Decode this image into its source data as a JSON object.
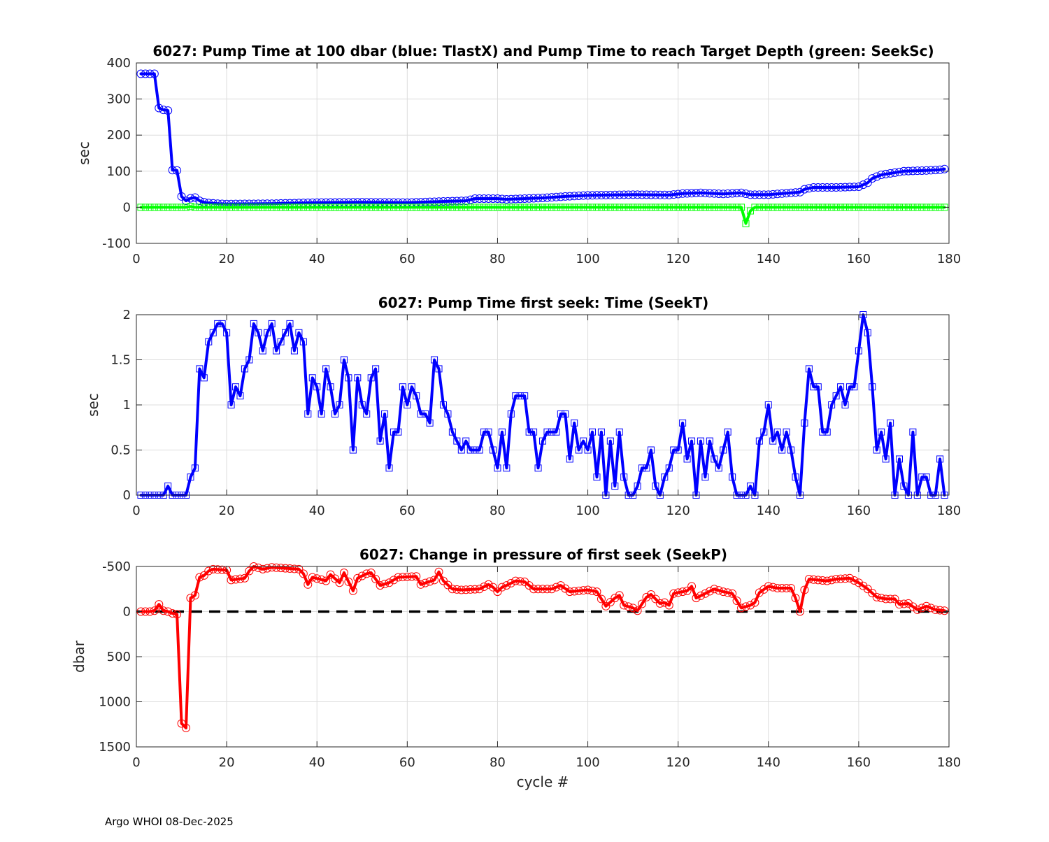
{
  "footer": "Argo WHOI 08-Dec-2025",
  "chart_data": [
    {
      "type": "line",
      "title": "6027:  Pump Time at 100 dbar (blue: TlastX) and Pump Time to reach Target Depth (green: SeekSc)",
      "xlabel": "",
      "ylabel": "sec",
      "xlim": [
        0,
        180
      ],
      "ylim": [
        -100,
        400
      ],
      "xticks": [
        0,
        20,
        40,
        60,
        80,
        100,
        120,
        140,
        160,
        180
      ],
      "yticks": [
        -100,
        0,
        100,
        200,
        300,
        400
      ],
      "ytick_labels": [
        "-100",
        "0",
        "100",
        "200",
        "300",
        "400"
      ],
      "grid": true,
      "series": [
        {
          "label": "TlastX",
          "color": "#0000ff",
          "marker": "circle",
          "points": [
            [
              1,
              370
            ],
            [
              2,
              370
            ],
            [
              3,
              370
            ],
            [
              4,
              370
            ],
            [
              5,
              275
            ],
            [
              6,
              270
            ],
            [
              7,
              268
            ],
            [
              8,
              103
            ],
            [
              9,
              102
            ],
            [
              10,
              30
            ],
            [
              11,
              18
            ],
            [
              12,
              25
            ],
            [
              13,
              27
            ],
            [
              14,
              18
            ],
            [
              15,
              14
            ],
            [
              16,
              12
            ],
            [
              18,
              10
            ],
            [
              20,
              9
            ],
            [
              30,
              10
            ],
            [
              40,
              13
            ],
            [
              50,
              14
            ],
            [
              60,
              13
            ],
            [
              70,
              17
            ],
            [
              73,
              18
            ],
            [
              75,
              24
            ],
            [
              80,
              24
            ],
            [
              82,
              22
            ],
            [
              90,
              26
            ],
            [
              95,
              30
            ],
            [
              100,
              33
            ],
            [
              110,
              35
            ],
            [
              118,
              34
            ],
            [
              121,
              38
            ],
            [
              125,
              40
            ],
            [
              130,
              37
            ],
            [
              134,
              40
            ],
            [
              136,
              35
            ],
            [
              140,
              35
            ],
            [
              145,
              40
            ],
            [
              147,
              42
            ],
            [
              148,
              50
            ],
            [
              150,
              55
            ],
            [
              155,
              55
            ],
            [
              160,
              57
            ],
            [
              162,
              68
            ],
            [
              163,
              80
            ],
            [
              165,
              90
            ],
            [
              170,
              100
            ],
            [
              175,
              102
            ],
            [
              178,
              104
            ],
            [
              179,
              106
            ]
          ]
        },
        {
          "label": "SeekSc",
          "color": "#00ff00",
          "marker": "square",
          "points": [
            [
              1,
              0
            ],
            [
              11,
              0
            ],
            [
              12,
              2
            ],
            [
              13,
              0
            ],
            [
              134,
              0
            ],
            [
              135,
              -45
            ],
            [
              136,
              -10
            ],
            [
              137,
              0
            ],
            [
              179,
              0
            ]
          ]
        }
      ]
    },
    {
      "type": "line",
      "title": "6027: Pump Time first seek: Time (SeekT)",
      "xlabel": "",
      "ylabel": "sec",
      "xlim": [
        0,
        180
      ],
      "ylim": [
        0,
        2
      ],
      "xticks": [
        0,
        20,
        40,
        60,
        80,
        100,
        120,
        140,
        160,
        180
      ],
      "yticks": [
        0,
        0.5,
        1,
        1.5,
        2
      ],
      "ytick_labels": [
        "0",
        "0.5",
        "1",
        "1.5",
        "2"
      ],
      "grid": true,
      "series": [
        {
          "label": "SeekT",
          "color": "#0000ff",
          "marker": "square",
          "values": [
            0,
            0,
            0,
            0,
            0,
            0,
            0.1,
            0,
            0,
            0,
            0,
            0.2,
            0.3,
            1.4,
            1.3,
            1.7,
            1.8,
            1.9,
            1.9,
            1.8,
            1.0,
            1.2,
            1.1,
            1.4,
            1.5,
            1.9,
            1.8,
            1.6,
            1.8,
            1.9,
            1.6,
            1.7,
            1.8,
            1.9,
            1.6,
            1.8,
            1.7,
            0.9,
            1.3,
            1.2,
            0.9,
            1.4,
            1.2,
            0.9,
            1.0,
            1.5,
            1.3,
            0.5,
            1.3,
            1.0,
            0.9,
            1.3,
            1.4,
            0.6,
            0.9,
            0.3,
            0.7,
            0.7,
            1.2,
            1.0,
            1.2,
            1.1,
            0.9,
            0.9,
            0.8,
            1.5,
            1.4,
            1.0,
            0.9,
            0.7,
            0.6,
            0.5,
            0.6,
            0.5,
            0.5,
            0.5,
            0.7,
            0.7,
            0.5,
            0.3,
            0.7,
            0.3,
            0.9,
            1.1,
            1.1,
            1.1,
            0.7,
            0.7,
            0.3,
            0.6,
            0.7,
            0.7,
            0.7,
            0.9,
            0.9,
            0.4,
            0.8,
            0.5,
            0.6,
            0.5,
            0.7,
            0.2,
            0.7,
            0,
            0.6,
            0.1,
            0.7,
            0.2,
            0,
            0,
            0.1,
            0.3,
            0.3,
            0.5,
            0.1,
            0,
            0.2,
            0.3,
            0.5,
            0.5,
            0.8,
            0.4,
            0.6,
            0,
            0.6,
            0.2,
            0.6,
            0.4,
            0.3,
            0.5,
            0.7,
            0.2,
            0,
            0,
            0,
            0.1,
            0,
            0.6,
            0.7,
            1.0,
            0.6,
            0.7,
            0.5,
            0.7,
            0.5,
            0.2,
            0,
            0.8,
            1.4,
            1.2,
            1.2,
            0.7,
            0.7,
            1.0,
            1.1,
            1.2,
            1.0,
            1.2,
            1.2,
            1.6,
            2.0,
            1.8,
            1.2,
            0.5,
            0.7,
            0.4,
            0.8,
            0,
            0.4,
            0.1,
            0,
            0.7,
            0,
            0.2,
            0.2,
            0,
            0,
            0.4,
            0
          ]
        }
      ]
    },
    {
      "type": "line",
      "title": "6027: Change in pressure of first seek (SeekP)",
      "xlabel": "cycle #",
      "ylabel": "dbar",
      "xlim": [
        0,
        180
      ],
      "ylim": [
        1500,
        -500
      ],
      "y_reversed": true,
      "xticks": [
        0,
        20,
        40,
        60,
        80,
        100,
        120,
        140,
        160,
        180
      ],
      "yticks": [
        -500,
        0,
        500,
        1000,
        1500
      ],
      "ytick_labels": [
        "-500",
        "0",
        "500",
        "1000",
        "1500"
      ],
      "grid": true,
      "reference_line": {
        "y": 0,
        "style": "dashed",
        "color": "#000000"
      },
      "series": [
        {
          "label": "SeekP",
          "color": "#ff0000",
          "marker": "circle",
          "points": [
            [
              1,
              0
            ],
            [
              3,
              0
            ],
            [
              4,
              -10
            ],
            [
              5,
              -80
            ],
            [
              6,
              -10
            ],
            [
              7,
              0
            ],
            [
              8,
              20
            ],
            [
              9,
              30
            ],
            [
              10,
              1240
            ],
            [
              11,
              1290
            ],
            [
              12,
              -150
            ],
            [
              13,
              -180
            ],
            [
              14,
              -380
            ],
            [
              15,
              -400
            ],
            [
              16,
              -450
            ],
            [
              17,
              -470
            ],
            [
              20,
              -460
            ],
            [
              21,
              -350
            ],
            [
              24,
              -370
            ],
            [
              25,
              -450
            ],
            [
              26,
              -500
            ],
            [
              28,
              -470
            ],
            [
              30,
              -490
            ],
            [
              36,
              -470
            ],
            [
              37,
              -420
            ],
            [
              38,
              -300
            ],
            [
              39,
              -380
            ],
            [
              42,
              -340
            ],
            [
              43,
              -410
            ],
            [
              45,
              -320
            ],
            [
              46,
              -430
            ],
            [
              48,
              -230
            ],
            [
              49,
              -370
            ],
            [
              51,
              -420
            ],
            [
              52,
              -430
            ],
            [
              54,
              -290
            ],
            [
              56,
              -320
            ],
            [
              58,
              -380
            ],
            [
              62,
              -390
            ],
            [
              63,
              -300
            ],
            [
              66,
              -350
            ],
            [
              67,
              -440
            ],
            [
              68,
              -340
            ],
            [
              70,
              -250
            ],
            [
              72,
              -240
            ],
            [
              76,
              -250
            ],
            [
              78,
              -300
            ],
            [
              79,
              -270
            ],
            [
              80,
              -220
            ],
            [
              81,
              -270
            ],
            [
              82,
              -290
            ],
            [
              84,
              -340
            ],
            [
              86,
              -330
            ],
            [
              88,
              -250
            ],
            [
              92,
              -250
            ],
            [
              94,
              -290
            ],
            [
              96,
              -220
            ],
            [
              100,
              -240
            ],
            [
              102,
              -220
            ],
            [
              104,
              -60
            ],
            [
              106,
              -150
            ],
            [
              107,
              -180
            ],
            [
              108,
              -70
            ],
            [
              110,
              -40
            ],
            [
              111,
              -10
            ],
            [
              113,
              -160
            ],
            [
              114,
              -190
            ],
            [
              116,
              -90
            ],
            [
              117,
              -100
            ],
            [
              118,
              -70
            ],
            [
              119,
              -200
            ],
            [
              122,
              -230
            ],
            [
              123,
              -280
            ],
            [
              124,
              -150
            ],
            [
              126,
              -200
            ],
            [
              128,
              -250
            ],
            [
              130,
              -220
            ],
            [
              132,
              -200
            ],
            [
              134,
              -40
            ],
            [
              136,
              -70
            ],
            [
              137,
              -100
            ],
            [
              138,
              -210
            ],
            [
              140,
              -280
            ],
            [
              142,
              -260
            ],
            [
              145,
              -260
            ],
            [
              146,
              -150
            ],
            [
              147,
              0
            ],
            [
              148,
              -240
            ],
            [
              149,
              -360
            ],
            [
              151,
              -350
            ],
            [
              153,
              -340
            ],
            [
              155,
              -360
            ],
            [
              158,
              -370
            ],
            [
              160,
              -320
            ],
            [
              162,
              -250
            ],
            [
              164,
              -160
            ],
            [
              166,
              -140
            ],
            [
              168,
              -140
            ],
            [
              169,
              -80
            ],
            [
              171,
              -90
            ],
            [
              173,
              -20
            ],
            [
              175,
              -60
            ],
            [
              177,
              -20
            ],
            [
              179,
              -10
            ]
          ]
        }
      ]
    }
  ]
}
